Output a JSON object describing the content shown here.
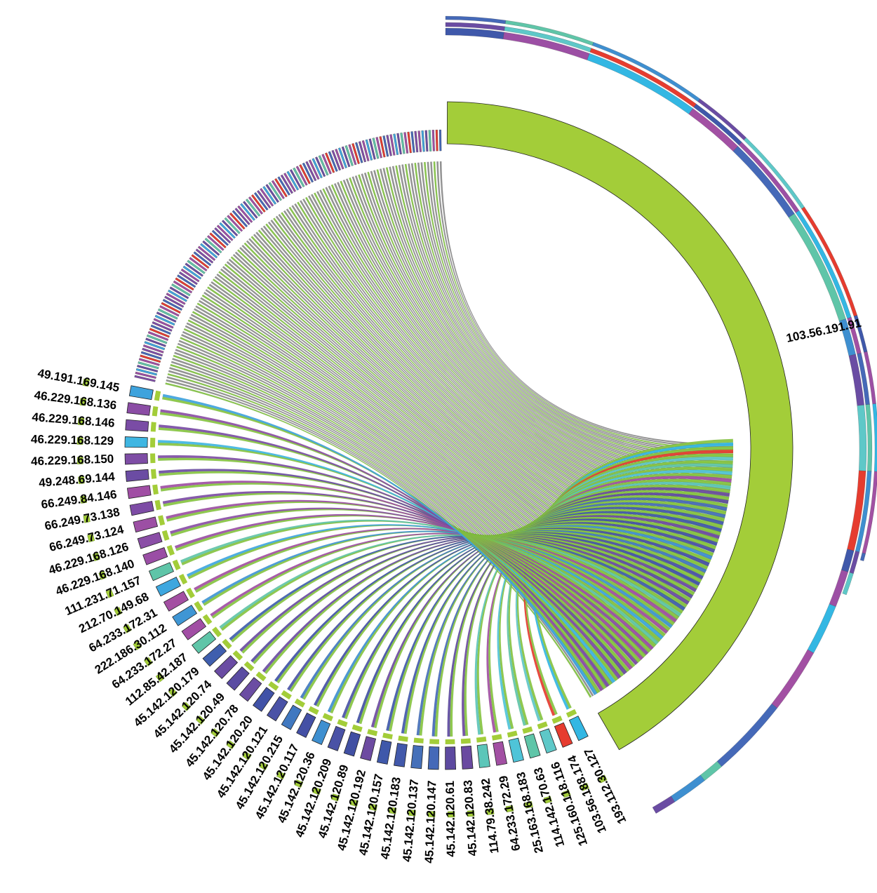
{
  "chart_data": {
    "type": "chord",
    "title": "",
    "center": [
      635,
      640
    ],
    "description": "Chord diagram of IP-to-IP connections; one dominant source node connects to many destination IPs",
    "main_node": {
      "label": "103.56.191.91",
      "color": "#a3cd39",
      "arc_deg": [
        0,
        150
      ]
    },
    "labeled_nodes": [
      {
        "label": "193.112.30.127",
        "color": "#33b7e3"
      },
      {
        "label": "103.56.188.174",
        "color": "#e63c2f"
      },
      {
        "label": "125.160.118.116",
        "color": "#5ec8c8"
      },
      {
        "label": "114.142.170.63",
        "color": "#5fc5a8"
      },
      {
        "label": "25.163.168.183",
        "color": "#4fc4d8"
      },
      {
        "label": "64.233.172.29",
        "color": "#a250a3"
      },
      {
        "label": "114.79.38.242",
        "color": "#5cc6b9"
      },
      {
        "label": "45.142.120.83",
        "color": "#6a4aa0"
      },
      {
        "label": "45.142.120.61",
        "color": "#5d4aa0"
      },
      {
        "label": "45.142.120.147",
        "color": "#4569b8"
      },
      {
        "label": "45.142.120.137",
        "color": "#4570b9"
      },
      {
        "label": "45.142.120.183",
        "color": "#4259ab"
      },
      {
        "label": "45.142.120.157",
        "color": "#3f58aa"
      },
      {
        "label": "45.142.120.192",
        "color": "#6d4ba1"
      },
      {
        "label": "45.142.120.89",
        "color": "#4150a3"
      },
      {
        "label": "45.142.120.209",
        "color": "#4a52a6"
      },
      {
        "label": "45.142.120.36",
        "color": "#3e8fd0"
      },
      {
        "label": "45.142.120.117",
        "color": "#4450a5"
      },
      {
        "label": "45.142.120.215",
        "color": "#4078c0"
      },
      {
        "label": "45.142.120.121",
        "color": "#4a52a6"
      },
      {
        "label": "45.142.120.20",
        "color": "#4052a7"
      },
      {
        "label": "45.142.120.78",
        "color": "#6b4da3"
      },
      {
        "label": "45.142.120.49",
        "color": "#5a4ca2"
      },
      {
        "label": "45.142.120.74",
        "color": "#6a4ca3"
      },
      {
        "label": "45.142.120.179",
        "color": "#3f5eae"
      },
      {
        "label": "112.85.42.187",
        "color": "#5fc5a8"
      },
      {
        "label": "64.233.172.27",
        "color": "#a14ea4"
      },
      {
        "label": "222.186.30.112",
        "color": "#3f96d4"
      },
      {
        "label": "64.233.172.31",
        "color": "#a34fa2"
      },
      {
        "label": "212.70.149.68",
        "color": "#3ea7df"
      },
      {
        "label": "111.231.71.157",
        "color": "#5fc5a8"
      },
      {
        "label": "46.229.168.140",
        "color": "#9a4ea5"
      },
      {
        "label": "46.229.168.126",
        "color": "#8a4ea6"
      },
      {
        "label": "66.249.73.124",
        "color": "#9c4fa4"
      },
      {
        "label": "66.249.73.138",
        "color": "#7d4ca5"
      },
      {
        "label": "66.249.84.146",
        "color": "#a04ea4"
      },
      {
        "label": "49.248.69.144",
        "color": "#6b4ca3"
      },
      {
        "label": "46.229.168.150",
        "color": "#7e4da5"
      },
      {
        "label": "46.229.168.129",
        "color": "#3fb6e2"
      },
      {
        "label": "46.229.168.146",
        "color": "#7a4ca5"
      },
      {
        "label": "46.229.168.136",
        "color": "#8b4da5"
      },
      {
        "label": "49.191.169.145",
        "color": "#3ea3dd"
      }
    ],
    "unlabeled_small_nodes_count": 120,
    "palette": [
      "#a3cd39",
      "#33b7e3",
      "#e63c2f",
      "#5ec8c8",
      "#5fc5a8",
      "#a250a3",
      "#6a4aa0",
      "#4569b8",
      "#4150a3",
      "#3e8fd0"
    ],
    "outer_tracks": 3,
    "legend": null
  },
  "labels": {
    "main_node": "103.56.191.91"
  }
}
